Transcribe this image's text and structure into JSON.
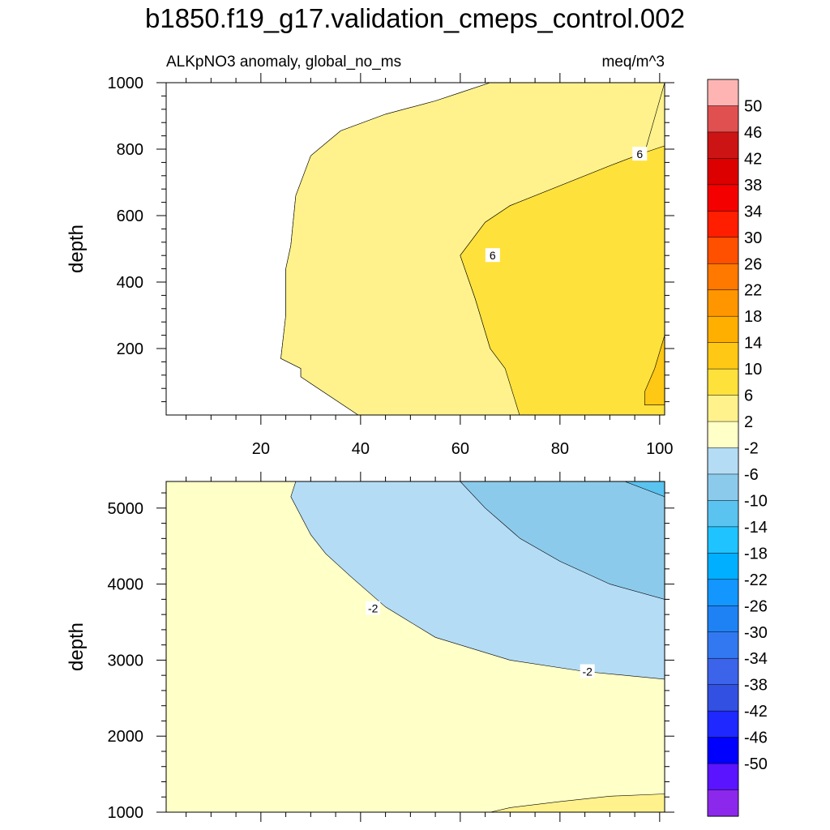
{
  "main_title": "b1850.f19_g17.validation_cmeps_control.002",
  "chart_data": [
    {
      "type": "contour",
      "panel": "upper",
      "left_title": "ALKpNO3 anomaly, global_no_ms",
      "right_title": "meq/m^3",
      "xlabel": "",
      "ylabel": "depth",
      "xlim": [
        1,
        101
      ],
      "ylim": [
        1000,
        0
      ],
      "x_ticks": [
        20,
        40,
        60,
        80,
        100
      ],
      "y_ticks": [
        200,
        400,
        600,
        800,
        1000
      ],
      "contour_labels": [
        {
          "text": "6",
          "x": 66.5,
          "y": 480
        },
        {
          "text": "6",
          "x": 96,
          "y": 785
        }
      ],
      "regions": [
        {
          "level": "-2 to 2",
          "color": "#ffffc8",
          "x": [
            1,
            101,
            101,
            66,
            60,
            55,
            45,
            36,
            30,
            27,
            26,
            25,
            25,
            24,
            28,
            28,
            40,
            1
          ],
          "y": [
            0,
            0,
            1000,
            1000,
            970,
            945,
            905,
            855,
            780,
            660,
            510,
            440,
            300,
            170,
            140,
            115,
            -5,
            -5
          ]
        },
        {
          "level": "2 to 6",
          "color": "#fff28c",
          "x": [
            40,
            101,
            101,
            97,
            90,
            80,
            70,
            65,
            60,
            63,
            66,
            69,
            72,
            85,
            101,
            101,
            96,
            66,
            60,
            55,
            45,
            36,
            30,
            27,
            26,
            25,
            25,
            24,
            28,
            28
          ],
          "y": [
            -5,
            -5,
            1000,
            790,
            750,
            690,
            630,
            580,
            480,
            350,
            200,
            140,
            100,
            -5,
            -5,
            1000,
            1000,
            1000,
            970,
            945,
            905,
            855,
            780,
            660,
            510,
            440,
            300,
            170,
            140,
            115
          ]
        },
        {
          "level": "6 to 10",
          "color": "#ffe13c",
          "x": [
            72,
            101,
            101,
            97,
            90,
            80,
            70,
            65,
            60,
            63,
            66,
            69
          ],
          "y": [
            -5,
            -5,
            810,
            790,
            750,
            690,
            630,
            580,
            480,
            350,
            200,
            140
          ]
        },
        {
          "level": "10 to 14",
          "color": "#ffc814",
          "x": [
            97,
            101,
            101,
            99,
            97
          ],
          "y": [
            30,
            30,
            240,
            140,
            70
          ]
        }
      ]
    },
    {
      "type": "contour",
      "panel": "lower",
      "left_title": "",
      "right_title": "",
      "xlabel": "",
      "ylabel": "depth",
      "xlim": [
        1,
        101
      ],
      "ylim": [
        5350,
        1000
      ],
      "x_ticks": [
        20,
        40,
        60,
        80,
        100
      ],
      "y_ticks": [
        1000,
        2000,
        3000,
        4000,
        5000
      ],
      "contour_labels": [
        {
          "text": "-2",
          "x": 42.5,
          "y": 3680
        },
        {
          "text": "-2",
          "x": 85.5,
          "y": 2850
        }
      ],
      "regions": [
        {
          "level": "-2 to 2",
          "color": "#ffffc8",
          "x": [
            1,
            101,
            101,
            1
          ],
          "y": [
            1000,
            1000,
            5350,
            5350
          ]
        },
        {
          "level": "2 to 6",
          "color": "#fff28c",
          "x": [
            66,
            101,
            101,
            90,
            80,
            70
          ],
          "y": [
            1000,
            1000,
            1240,
            1210,
            1140,
            1060
          ]
        },
        {
          "level": "-6 to -2",
          "color": "#b4dcf5",
          "x": [
            27,
            26,
            28,
            30,
            33,
            38,
            45,
            55,
            70,
            85,
            101,
            101
          ],
          "y": [
            5350,
            5150,
            4900,
            4650,
            4400,
            4100,
            3700,
            3300,
            3000,
            2850,
            2750,
            5350
          ]
        },
        {
          "level": "-10 to -6",
          "color": "#8ccaeb",
          "x": [
            60,
            65,
            72,
            80,
            90,
            101,
            101
          ],
          "y": [
            5350,
            5000,
            4600,
            4300,
            4000,
            3800,
            5350
          ]
        },
        {
          "level": "-14 to -10",
          "color": "#5ac3f0",
          "x": [
            93,
            97,
            101,
            101
          ],
          "y": [
            5350,
            5250,
            5150,
            5350
          ]
        }
      ]
    },
    {
      "type": "colorbar",
      "labels": [
        "50",
        "46",
        "42",
        "38",
        "34",
        "30",
        "26",
        "22",
        "18",
        "14",
        "10",
        "6",
        "2",
        "-2",
        "-6",
        "-10",
        "-14",
        "-18",
        "-22",
        "-26",
        "-30",
        "-34",
        "-38",
        "-42",
        "-46",
        "-50"
      ],
      "colors": [
        "#ffb4b4",
        "#e15050",
        "#cd1414",
        "#dc0000",
        "#f50000",
        "#ff1e00",
        "#ff5000",
        "#ff7800",
        "#ff9600",
        "#ffaf00",
        "#ffc814",
        "#ffe13c",
        "#fff28c",
        "#ffffc8",
        "#b4dcf5",
        "#8ccaeb",
        "#5ac3f0",
        "#1ec3ff",
        "#00afff",
        "#1496ff",
        "#1e82f5",
        "#3278f0",
        "#3c64eb",
        "#3250e1",
        "#1e28ff",
        "#0000ff",
        "#5a14ff",
        "#8c28eb"
      ]
    }
  ]
}
